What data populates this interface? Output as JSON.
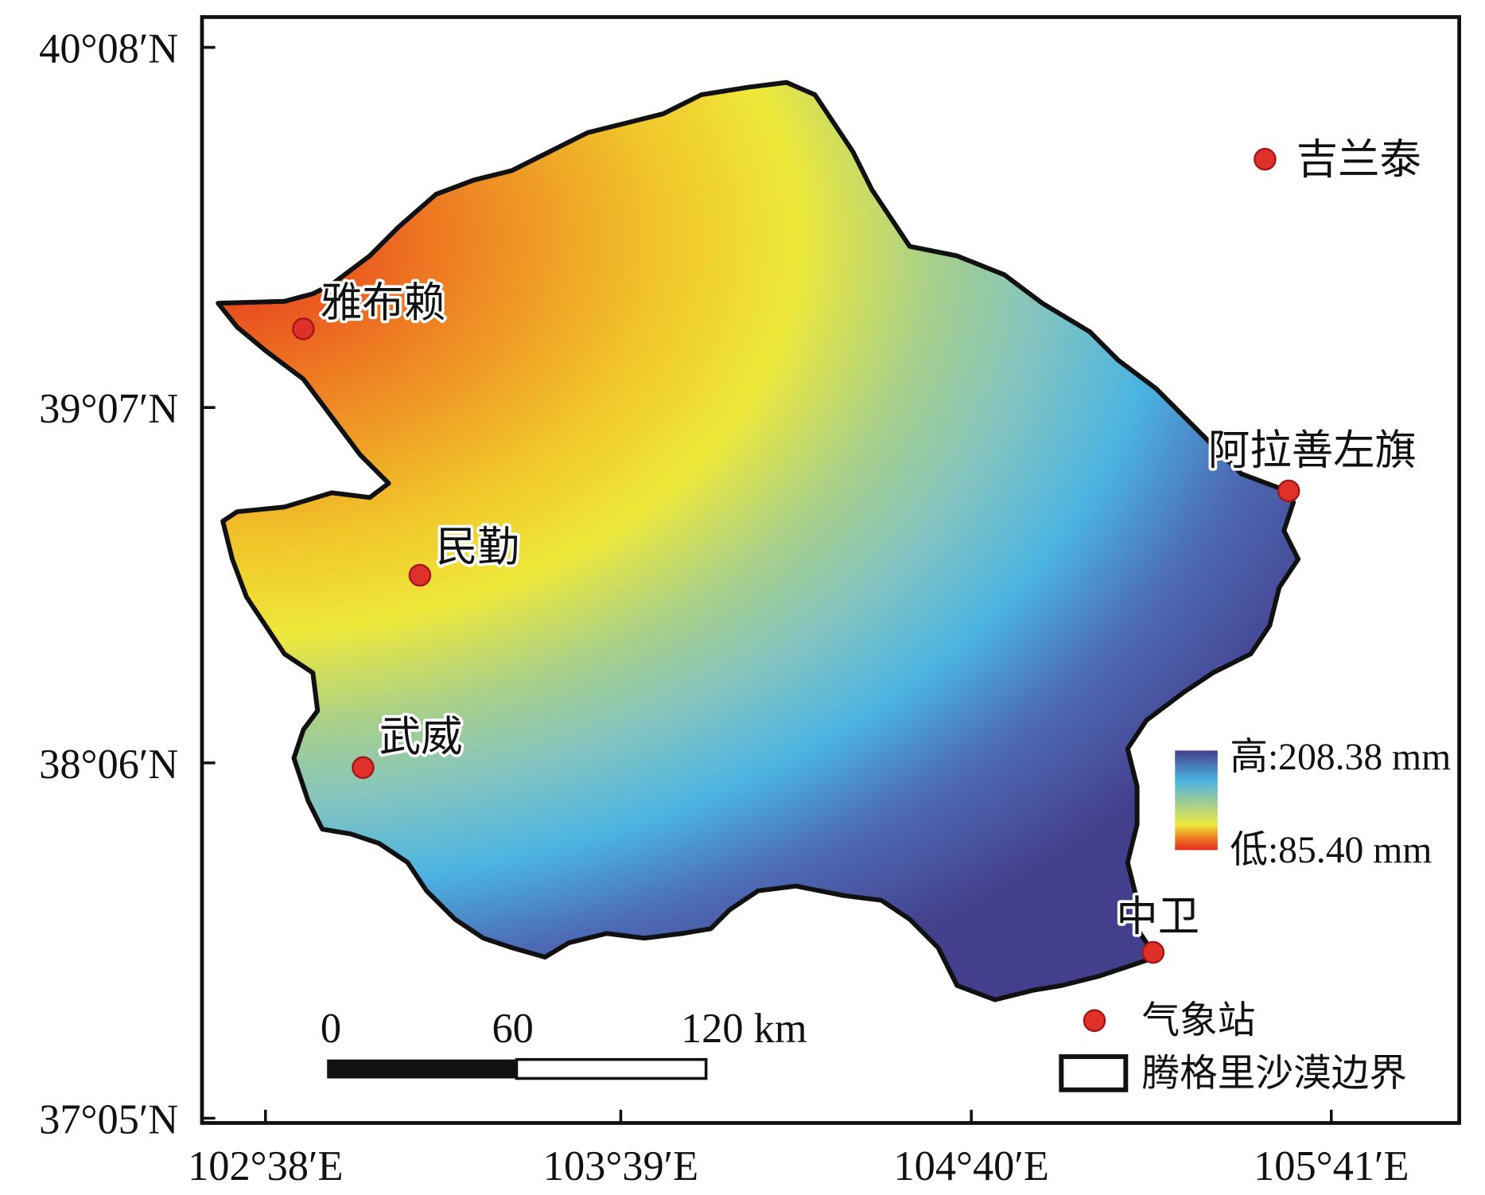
{
  "map": {
    "lat_ticks": [
      "40°08′N",
      "39°07′N",
      "38°06′N",
      "37°05′N"
    ],
    "lon_ticks": [
      "102°38′E",
      "103°39′E",
      "104°40′E",
      "105°41′E"
    ],
    "stations": [
      {
        "name": "吉兰泰"
      },
      {
        "name": "雅布赖"
      },
      {
        "name": "民勤"
      },
      {
        "name": "武威"
      },
      {
        "name": "阿拉善左旗"
      },
      {
        "name": "中卫"
      }
    ],
    "legend": {
      "high": "高:208.38 mm",
      "low": "低:85.40 mm",
      "station": "气象站",
      "boundary": "腾格里沙漠边界"
    },
    "scale_bar": {
      "labels": [
        "0",
        "60",
        "120 km"
      ]
    }
  }
}
